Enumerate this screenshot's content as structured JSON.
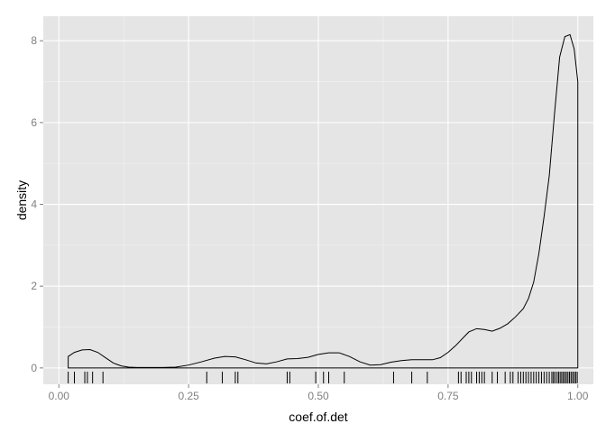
{
  "chart_data": {
    "type": "area",
    "title": "",
    "xlabel": "coef.of.det",
    "ylabel": "density",
    "xlim": [
      -0.03,
      1.03
    ],
    "ylim": [
      -0.4,
      8.6
    ],
    "grid": true,
    "x_ticks": [
      {
        "value": 0.0,
        "label": "0.00"
      },
      {
        "value": 0.25,
        "label": "0.25"
      },
      {
        "value": 0.5,
        "label": "0.50"
      },
      {
        "value": 0.75,
        "label": "0.75"
      },
      {
        "value": 1.0,
        "label": "1.00"
      }
    ],
    "y_ticks": [
      {
        "value": 0,
        "label": "0"
      },
      {
        "value": 2,
        "label": "2"
      },
      {
        "value": 4,
        "label": "4"
      },
      {
        "value": 6,
        "label": "6"
      },
      {
        "value": 8,
        "label": "8"
      }
    ],
    "x_minor": [
      0.125,
      0.375,
      0.625,
      0.875
    ],
    "y_minor": [
      1,
      3,
      5,
      7
    ],
    "density": {
      "x": [
        0.018,
        0.03,
        0.045,
        0.06,
        0.075,
        0.09,
        0.105,
        0.12,
        0.135,
        0.15,
        0.2,
        0.225,
        0.25,
        0.275,
        0.3,
        0.32,
        0.34,
        0.36,
        0.38,
        0.4,
        0.42,
        0.44,
        0.46,
        0.48,
        0.5,
        0.52,
        0.54,
        0.56,
        0.58,
        0.6,
        0.62,
        0.64,
        0.66,
        0.68,
        0.7,
        0.72,
        0.735,
        0.75,
        0.765,
        0.78,
        0.79,
        0.805,
        0.82,
        0.835,
        0.85,
        0.865,
        0.88,
        0.895,
        0.905,
        0.915,
        0.925,
        0.935,
        0.945,
        0.955,
        0.965,
        0.975,
        0.985,
        0.993,
        1.0
      ],
      "y": [
        0.28,
        0.38,
        0.44,
        0.45,
        0.38,
        0.25,
        0.12,
        0.05,
        0.02,
        0.01,
        0.01,
        0.02,
        0.07,
        0.15,
        0.24,
        0.28,
        0.27,
        0.2,
        0.12,
        0.1,
        0.15,
        0.22,
        0.23,
        0.26,
        0.33,
        0.37,
        0.37,
        0.28,
        0.15,
        0.07,
        0.08,
        0.14,
        0.18,
        0.2,
        0.2,
        0.2,
        0.25,
        0.38,
        0.55,
        0.75,
        0.88,
        0.96,
        0.94,
        0.9,
        0.97,
        1.08,
        1.25,
        1.45,
        1.7,
        2.1,
        2.8,
        3.7,
        4.7,
        6.2,
        7.6,
        8.1,
        8.15,
        7.8,
        7.0
      ]
    },
    "rug": [
      0.018,
      0.03,
      0.05,
      0.055,
      0.065,
      0.085,
      0.285,
      0.315,
      0.34,
      0.345,
      0.44,
      0.445,
      0.495,
      0.51,
      0.52,
      0.55,
      0.645,
      0.68,
      0.71,
      0.77,
      0.775,
      0.785,
      0.79,
      0.795,
      0.805,
      0.81,
      0.815,
      0.82,
      0.835,
      0.845,
      0.86,
      0.87,
      0.875,
      0.885,
      0.89,
      0.895,
      0.9,
      0.905,
      0.91,
      0.915,
      0.92,
      0.925,
      0.93,
      0.935,
      0.94,
      0.945,
      0.95,
      0.953,
      0.956,
      0.96,
      0.963,
      0.966,
      0.969,
      0.972,
      0.975,
      0.978,
      0.981,
      0.984,
      0.987,
      0.99,
      0.993,
      0.996,
      0.999
    ]
  },
  "colors": {
    "panel": "#e5e5e5",
    "grid_major": "#ffffff",
    "grid_minor": "#f2f2f2",
    "line": "#000000",
    "tick_text": "#7f7f7f"
  }
}
